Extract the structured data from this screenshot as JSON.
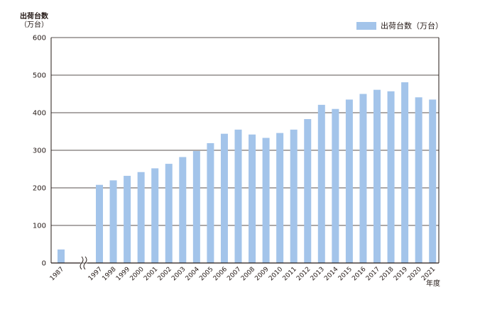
{
  "chart_data": {
    "type": "bar",
    "title": "",
    "ylabel": "出荷台数",
    "ylabel_unit": "（万台）",
    "xlabel": "年度",
    "ylim": [
      0,
      600
    ],
    "yticks": [
      0,
      100,
      200,
      300,
      400,
      500,
      600
    ],
    "grid": true,
    "legend_position": "top-right",
    "axis_break_after": "1987",
    "categories": [
      "1987",
      "1997",
      "1998",
      "1999",
      "2000",
      "2001",
      "2002",
      "2003",
      "2004",
      "2005",
      "2006",
      "2007",
      "2008",
      "2009",
      "2010",
      "2011",
      "2012",
      "2013",
      "2014",
      "2015",
      "2016",
      "2017",
      "2018",
      "2019",
      "2020",
      "2021"
    ],
    "series": [
      {
        "name": "出荷台数（万台）",
        "color": "#a3c4ea",
        "values": [
          36,
          208,
          220,
          232,
          242,
          252,
          264,
          282,
          298,
          319,
          344,
          355,
          342,
          333,
          346,
          355,
          383,
          421,
          410,
          435,
          450,
          461,
          457,
          481,
          441,
          435
        ]
      }
    ]
  }
}
